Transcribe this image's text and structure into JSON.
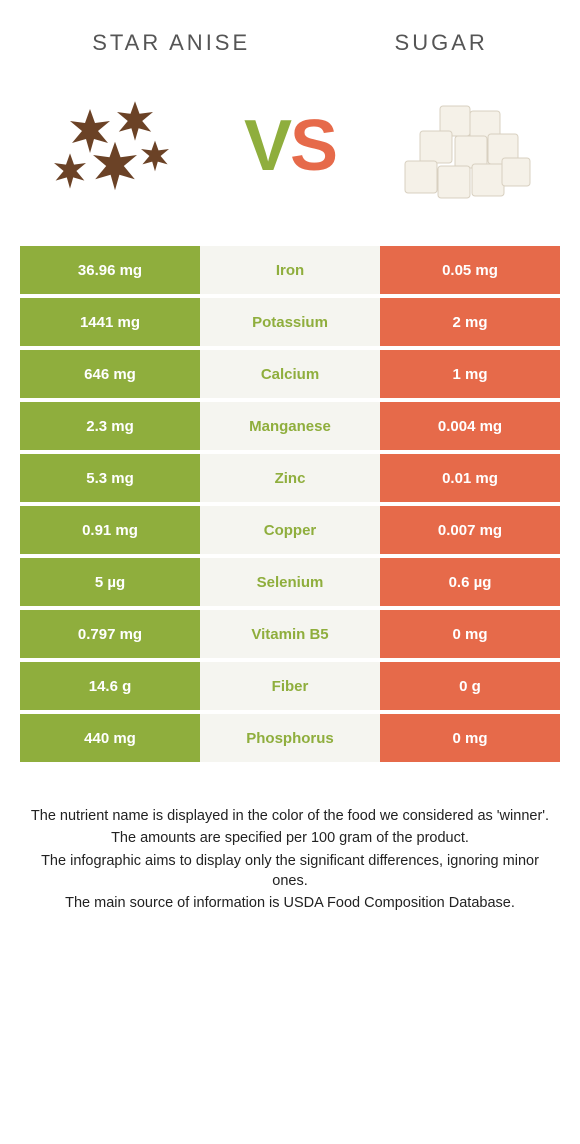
{
  "header": {
    "left_title": "Star anise",
    "right_title": "Sugar",
    "vs_v": "V",
    "vs_s": "S"
  },
  "colors": {
    "left": "#8fae3d",
    "right": "#e66a4a",
    "mid_bg": "#f5f5f0"
  },
  "rows": [
    {
      "left": "36.96 mg",
      "label": "Iron",
      "right": "0.05 mg",
      "winner": "left"
    },
    {
      "left": "1441 mg",
      "label": "Potassium",
      "right": "2 mg",
      "winner": "left"
    },
    {
      "left": "646 mg",
      "label": "Calcium",
      "right": "1 mg",
      "winner": "left"
    },
    {
      "left": "2.3 mg",
      "label": "Manganese",
      "right": "0.004 mg",
      "winner": "left"
    },
    {
      "left": "5.3 mg",
      "label": "Zinc",
      "right": "0.01 mg",
      "winner": "left"
    },
    {
      "left": "0.91 mg",
      "label": "Copper",
      "right": "0.007 mg",
      "winner": "left"
    },
    {
      "left": "5 µg",
      "label": "Selenium",
      "right": "0.6 µg",
      "winner": "left"
    },
    {
      "left": "0.797 mg",
      "label": "Vitamin B5",
      "right": "0 mg",
      "winner": "left"
    },
    {
      "left": "14.6 g",
      "label": "Fiber",
      "right": "0 g",
      "winner": "left"
    },
    {
      "left": "440 mg",
      "label": "Phosphorus",
      "right": "0 mg",
      "winner": "left"
    }
  ],
  "footnote": {
    "l1": "The nutrient name is displayed in the color of the food we considered as 'winner'.",
    "l2": "The amounts are specified per 100 gram of the product.",
    "l3": "The infographic aims to display only the significant differences, ignoring minor ones.",
    "l4": "The main source of information is USDA Food Composition Database."
  }
}
